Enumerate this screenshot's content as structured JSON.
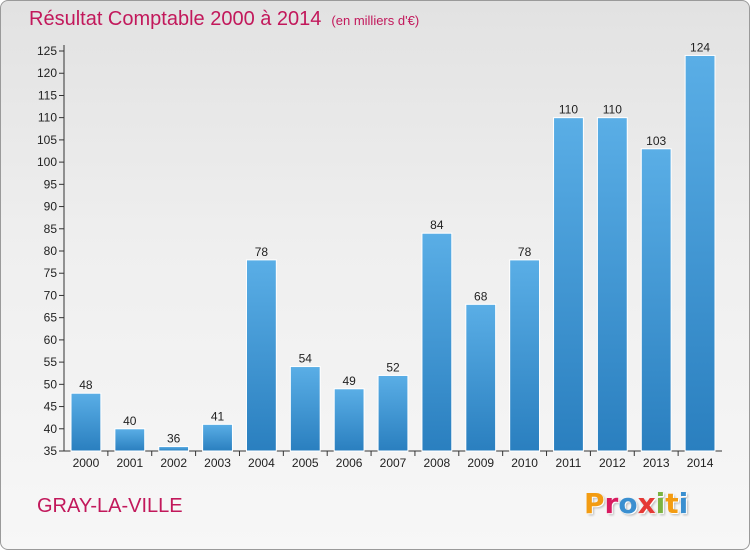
{
  "header": {
    "title": "Résultat Comptable 2000 à 2014",
    "subtitle": "(en milliers d'€)"
  },
  "footer": {
    "location": "GRAY-LA-VILLE",
    "logo_text": "Proxiti"
  },
  "colors": {
    "accent": "#c2185b",
    "bar_top": "#5aaee6",
    "bar_bottom": "#2a7fbf"
  },
  "chart_data": {
    "type": "bar",
    "categories": [
      "2000",
      "2001",
      "2002",
      "2003",
      "2004",
      "2005",
      "2006",
      "2007",
      "2008",
      "2009",
      "2010",
      "2011",
      "2012",
      "2013",
      "2014"
    ],
    "values": [
      48,
      40,
      36,
      41,
      78,
      54,
      49,
      52,
      84,
      68,
      78,
      110,
      110,
      103,
      124
    ],
    "title": "Résultat Comptable 2000 à 2014",
    "subtitle": "(en milliers d'€)",
    "xlabel": "",
    "ylabel": "",
    "ylim": [
      35,
      125
    ],
    "yticks": [
      35,
      40,
      45,
      50,
      55,
      60,
      65,
      70,
      75,
      80,
      85,
      90,
      95,
      100,
      105,
      110,
      115,
      120,
      125
    ],
    "grid": false,
    "data_labels": true
  }
}
